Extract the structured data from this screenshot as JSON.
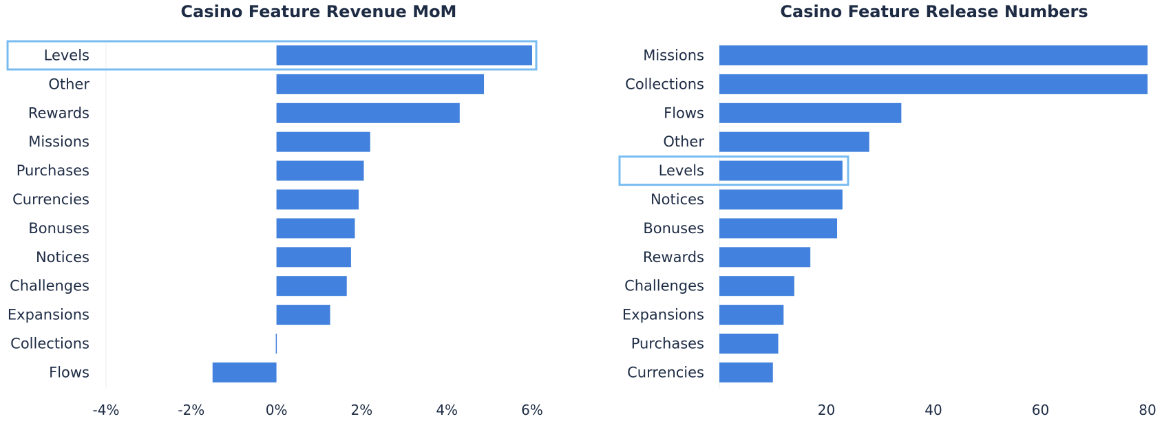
{
  "colors": {
    "bar": "#4281dd",
    "highlight": "#79bcf1",
    "text": "#1d2b44",
    "axis": "#eaedf2"
  },
  "chart_data": [
    {
      "type": "bar",
      "orientation": "horizontal",
      "title": "Casino Feature Revenue MoM",
      "categories": [
        "Levels",
        "Other",
        "Rewards",
        "Missions",
        "Purchases",
        "Currencies",
        "Bonuses",
        "Notices",
        "Challenges",
        "Expansions",
        "Collections",
        "Flows"
      ],
      "values": [
        6.0,
        4.87,
        4.3,
        2.2,
        2.05,
        1.93,
        1.84,
        1.75,
        1.65,
        1.26,
        0.0,
        -1.5
      ],
      "unit": "%",
      "xlim": [
        -4,
        6
      ],
      "ticks": [
        -4,
        -2,
        0,
        2,
        4,
        6
      ],
      "tick_labels": [
        "-4%",
        "-2%",
        "0%",
        "2%",
        "4%",
        "6%"
      ],
      "highlighted_category": "Levels",
      "grid": false
    },
    {
      "type": "bar",
      "orientation": "horizontal",
      "title": "Casino Feature Release Numbers",
      "categories": [
        "Missions",
        "Collections",
        "Flows",
        "Other",
        "Levels",
        "Notices",
        "Bonuses",
        "Rewards",
        "Challenges",
        "Expansions",
        "Purchases",
        "Currencies"
      ],
      "values": [
        80,
        80,
        34,
        28,
        23,
        23,
        22,
        17,
        14,
        12,
        11,
        10
      ],
      "xlim": [
        0,
        80
      ],
      "ticks": [
        20,
        40,
        60,
        80
      ],
      "tick_labels": [
        "20",
        "40",
        "60",
        "80"
      ],
      "highlighted_category": "Levels",
      "grid": false
    }
  ]
}
